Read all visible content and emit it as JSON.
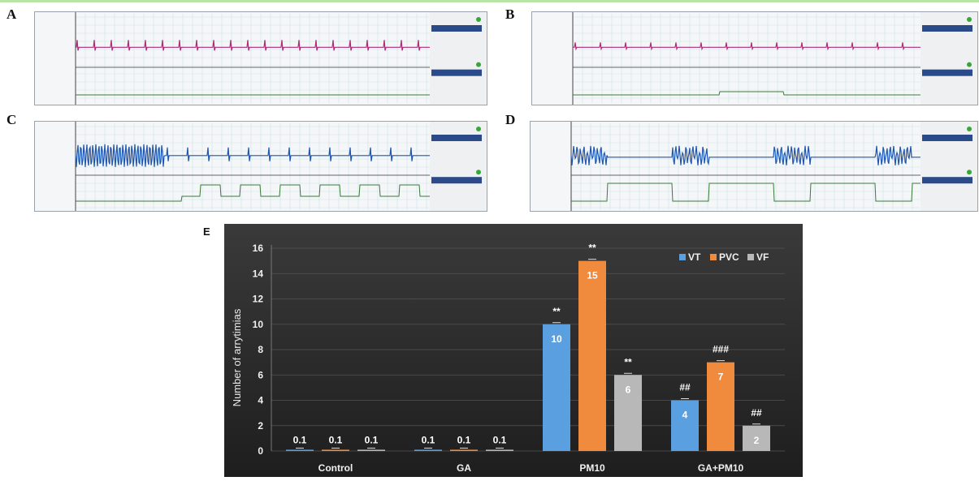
{
  "panels": [
    {
      "letter": "A"
    },
    {
      "letter": "B"
    },
    {
      "letter": "C"
    },
    {
      "letter": "D"
    },
    {
      "letter": "E"
    }
  ],
  "colors": {
    "ecg_a": "#b02a78",
    "ecg_b": "#b02a78",
    "ecg_c": "#1e56b0",
    "ecg_d": "#1e56b0",
    "pressure": "#3a7a3a",
    "vt": "#5aa0e0",
    "pvc": "#f08a3c",
    "vf": "#b8b8b8",
    "chart_bg": "#2f2f2f"
  },
  "chart_data": {
    "type": "bar",
    "categories": [
      "Control",
      "GA",
      "PM10",
      "GA+PM10"
    ],
    "series": [
      {
        "name": "VT",
        "values": [
          0.1,
          0.1,
          10,
          4
        ]
      },
      {
        "name": "PVC",
        "values": [
          0.1,
          0.1,
          15,
          7
        ]
      },
      {
        "name": "VF",
        "values": [
          0.1,
          0.1,
          6,
          2
        ]
      }
    ],
    "value_labels": [
      [
        "0.1",
        "0.1",
        "10",
        "4"
      ],
      [
        "0.1",
        "0.1",
        "15",
        "7"
      ],
      [
        "0.1",
        "0.1",
        "6",
        "2"
      ]
    ],
    "significance": [
      [
        "",
        "",
        "**",
        "##"
      ],
      [
        "",
        "",
        "**",
        "###"
      ],
      [
        "",
        "",
        "**",
        "##"
      ]
    ],
    "ylabel": "Number of arrytimias",
    "xlabel": "",
    "ylim": [
      0,
      16
    ],
    "yticks": [
      0,
      2,
      4,
      6,
      8,
      10,
      12,
      14,
      16
    ],
    "grid": true,
    "legend": "top-right"
  }
}
